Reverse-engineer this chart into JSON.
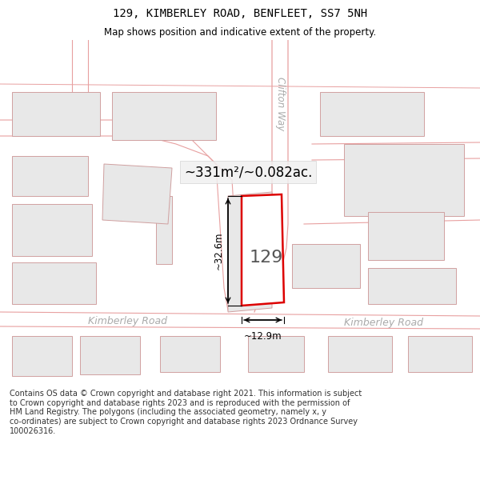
{
  "title": "129, KIMBERLEY ROAD, BENFLEET, SS7 5NH",
  "subtitle": "Map shows position and indicative extent of the property.",
  "area_label": "~331m²/~0.082ac.",
  "width_label": "~12.9m",
  "height_label": "~32.6m",
  "number_label": "129",
  "street_label1": "Kimberley Road",
  "street_label2": "Kimberley Road",
  "road_label_clifton": "Clifton Way",
  "copyright_text": "Contains OS data © Crown copyright and database right 2021. This information is subject\nto Crown copyright and database rights 2023 and is reproduced with the permission of\nHM Land Registry. The polygons (including the associated geometry, namely x, y\nco-ordinates) are subject to Crown copyright and database rights 2023 Ordnance Survey\n100026316.",
  "background_color": "#ffffff",
  "map_bg_color": "#ffffff",
  "building_fill": "#e8e8e8",
  "building_edge": "#d0a0a0",
  "subject_fill": "#ffffff",
  "subject_edge": "#dd0000",
  "subject_edge_width": 1.8,
  "road_line_color": "#e8a0a0",
  "dim_line_color": "#000000",
  "street_text_color": "#aaaaaa",
  "area_text_color": "#000000",
  "title_fontsize": 10,
  "subtitle_fontsize": 8.5,
  "label_fontsize": 8,
  "copyright_fontsize": 7.0
}
